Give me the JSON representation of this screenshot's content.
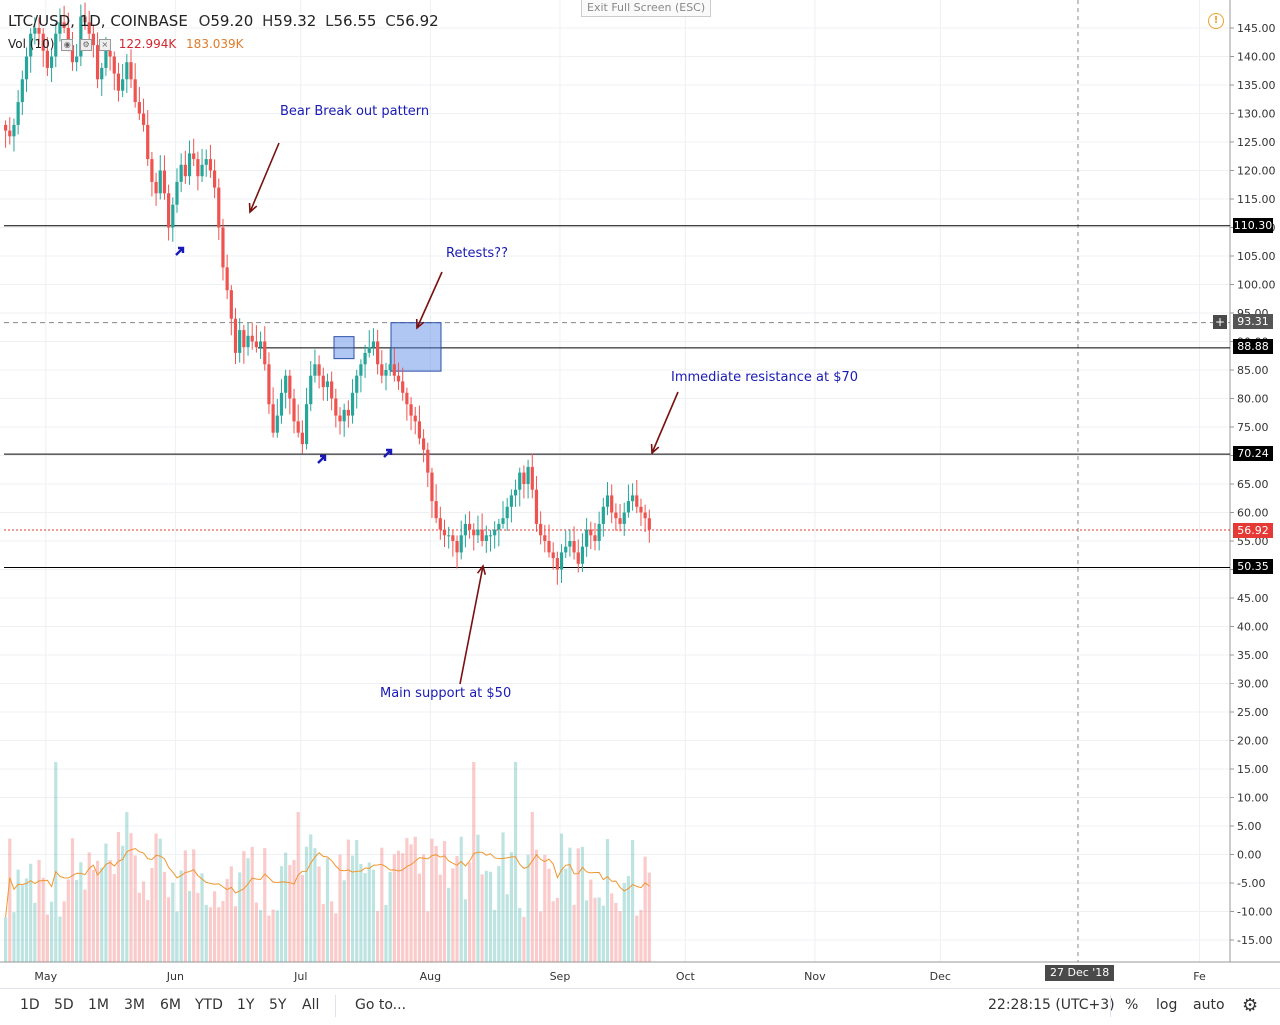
{
  "header": {
    "symbol": "LTC/USD, 1D, COINBASE",
    "o_label": "O",
    "o_value": "59.20",
    "h_label": "H",
    "h_value": "59.32",
    "l_label": "L",
    "l_value": "56.55",
    "c_label": "C",
    "c_value": "56.92"
  },
  "volume_header": {
    "label": "Vol (10)",
    "value1": "122.994K",
    "value2": "183.039K"
  },
  "exit_fullscreen": "Exit Full Screen (ESC)",
  "annotations": {
    "bear_breakout": "Bear Break out pattern",
    "retests": "Retests??",
    "resistance": "Immediate resistance at $70",
    "support": "Main support at $50"
  },
  "price_tags": {
    "level_110": "110.30",
    "level_93": "93.31",
    "level_88": "88.88",
    "level_70": "70.24",
    "current": "56.92",
    "level_50": "50.35"
  },
  "crosshair_date": "27 Dec '18",
  "toolbar": {
    "ranges": [
      "1D",
      "5D",
      "1M",
      "3M",
      "6M",
      "YTD",
      "1Y",
      "5Y",
      "All"
    ],
    "goto": "Go to...",
    "clock": "22:28:15 (UTC+3)",
    "percent": "%",
    "log": "log",
    "auto": "auto"
  },
  "colors": {
    "up": "#26a69a",
    "down": "#ef5350",
    "ma": "#f0962e",
    "annotation": "#1a1ab5"
  },
  "chart_data": {
    "type": "candlestick",
    "x_axis_labels": [
      "May",
      "Jun",
      "Jul",
      "Aug",
      "Sep",
      "Oct",
      "Nov",
      "Dec",
      "Fe"
    ],
    "y_axis_ticks": [
      145,
      140,
      135,
      130,
      125,
      120,
      115,
      110,
      105,
      100,
      95,
      90,
      85,
      80,
      75,
      70,
      65,
      60,
      55,
      50,
      45,
      40,
      35,
      30,
      25,
      20,
      15,
      10,
      5,
      0,
      -5,
      -10,
      -15
    ],
    "ylim": [
      -17,
      149
    ],
    "horizontal_levels": [
      110.3,
      88.88,
      70.24,
      50.35
    ],
    "dashed_level": 93.31,
    "current_price": 56.92,
    "close_series_start": "2018-04-21",
    "closes": [
      127,
      126,
      128,
      132,
      136,
      140,
      144,
      145,
      144,
      141,
      138,
      140,
      144,
      146,
      145,
      142,
      139,
      140,
      147,
      146,
      144,
      142,
      136,
      138,
      141,
      140,
      137,
      134,
      136,
      139,
      136,
      132,
      130,
      128,
      122,
      118,
      116,
      120,
      116,
      110,
      114,
      118,
      121,
      119,
      123,
      122,
      119,
      121,
      122,
      120,
      117,
      110,
      103,
      99,
      94,
      88,
      92,
      89,
      91,
      90,
      89,
      90,
      86,
      79,
      74,
      77,
      81,
      84,
      80,
      76,
      74,
      72,
      79,
      84,
      86,
      84,
      82,
      83,
      80,
      77,
      76,
      78,
      77,
      81,
      84,
      86,
      88,
      89,
      90,
      86,
      84,
      85,
      86,
      84,
      83,
      81,
      79,
      77,
      76,
      73,
      71,
      67,
      62,
      59,
      57,
      56,
      56,
      55,
      53,
      56,
      58,
      57,
      56,
      57,
      55,
      56,
      56,
      57,
      58,
      59,
      61,
      63,
      64,
      67,
      65,
      68,
      64,
      58,
      56,
      55,
      53,
      52,
      50,
      53,
      54,
      55,
      53,
      51,
      54,
      57,
      56,
      55,
      58,
      61,
      63,
      60,
      59,
      58,
      60,
      62,
      63,
      61,
      60,
      59,
      57
    ],
    "volume_note": "volume bars shown as relative heights; orange line is 10-day volume MA"
  }
}
